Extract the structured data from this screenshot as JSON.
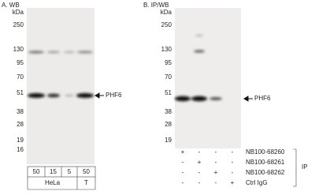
{
  "panel_a": {
    "label": "A. WB",
    "unit": "kDa",
    "markers": [
      "250",
      "130",
      "95",
      "70",
      "51",
      "38",
      "28",
      "19",
      "16"
    ],
    "target": "PHF6",
    "lanes": [
      "50",
      "15",
      "5",
      "50"
    ],
    "groups": [
      "HeLa",
      "T"
    ]
  },
  "panel_b": {
    "label": "B. IP/WB",
    "unit": "kDa",
    "markers": [
      "250",
      "130",
      "95",
      "70",
      "51",
      "38",
      "28",
      "19"
    ],
    "target": "PHF6",
    "rows": [
      {
        "name": "NB100-68260",
        "signs": [
          "+",
          "-",
          "-",
          "-"
        ]
      },
      {
        "name": "NB100-68261",
        "signs": [
          "-",
          "+",
          "-",
          "-"
        ]
      },
      {
        "name": "NB100-68262",
        "signs": [
          "-",
          "-",
          "+",
          "-"
        ]
      },
      {
        "name": "Ctrl IgG",
        "signs": [
          "-",
          "-",
          "-",
          "+"
        ]
      }
    ],
    "group": "IP"
  }
}
